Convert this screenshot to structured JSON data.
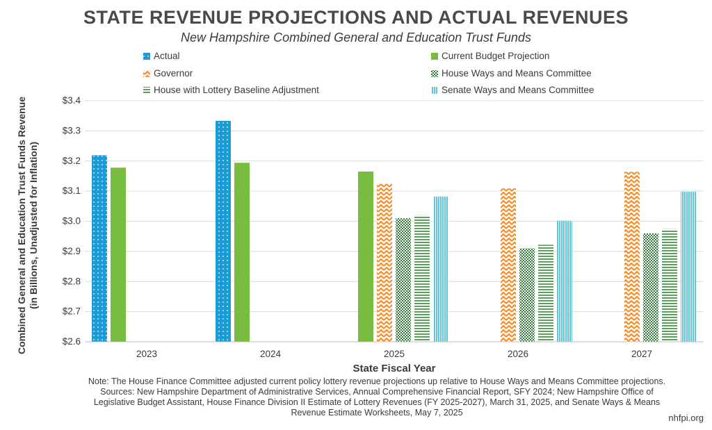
{
  "chart_data": {
    "type": "bar",
    "title": "STATE REVENUE PROJECTIONS AND ACTUAL REVENUES",
    "subtitle": "New Hampshire Combined General and Education Trust Funds",
    "xlabel": "State Fiscal Year",
    "ylabel_line1": "Combined General and Education Trust Funds Revenue",
    "ylabel_line2": "(in Billions, Unadjusted for Inflation)",
    "categories": [
      "2023",
      "2024",
      "2025",
      "2026",
      "2027"
    ],
    "ylim": [
      2.6,
      3.4
    ],
    "y_ticks": [
      {
        "value": 2.6,
        "label": "$2.6"
      },
      {
        "value": 2.7,
        "label": "$2.7"
      },
      {
        "value": 2.8,
        "label": "$2.8"
      },
      {
        "value": 2.9,
        "label": "$2.9"
      },
      {
        "value": 3.0,
        "label": "$3.0"
      },
      {
        "value": 3.1,
        "label": "$3.1"
      },
      {
        "value": 3.2,
        "label": "$3.2"
      },
      {
        "value": 3.3,
        "label": "$3.3"
      },
      {
        "value": 3.4,
        "label": "$3.4"
      }
    ],
    "grid": true,
    "legend_position": "top",
    "series": [
      {
        "name": "Actual",
        "color": "#1a9bd7",
        "pattern": "dots",
        "values": [
          3.219,
          3.333,
          null,
          null,
          null
        ]
      },
      {
        "name": "Current Budget Projection",
        "color": "#77bc3f",
        "pattern": "solid",
        "values": [
          3.178,
          3.194,
          3.165,
          null,
          null
        ]
      },
      {
        "name": "Governor",
        "color": "#f28c28",
        "pattern": "zigzag",
        "values": [
          null,
          null,
          3.124,
          3.109,
          3.164
        ]
      },
      {
        "name": "House Ways and Means Committee",
        "color": "#3a8a3e",
        "pattern": "checker",
        "values": [
          null,
          null,
          3.01,
          2.91,
          2.96
        ]
      },
      {
        "name": "House with Lottery Baseline Adjustment",
        "color": "#5aa05a",
        "pattern": "hstripes",
        "values": [
          null,
          null,
          3.02,
          2.922,
          2.974
        ]
      },
      {
        "name": "Senate Ways and Means Committee",
        "color": "#5cc6d8",
        "pattern": "vstripes",
        "values": [
          null,
          null,
          3.082,
          3.002,
          3.098
        ]
      }
    ]
  },
  "footer": {
    "note_lines": [
      "Note: The House Finance Committee adjusted current policy lottery revenue projections up relative to House Ways and Means Committee projections.",
      "Sources: New Hampshire Department of Administrative Services, Annual Comprehensive Financial Report, SFY 2024; New Hampshire Office of",
      "Legislative Budget Assistant, House Finance Division II Estimate of Lottery Revenues (FY 2025-2027), March 31, 2025, and Senate Ways & Means",
      "Revenue Estimate Worksheets, May 7, 2025"
    ],
    "credit": "nhfpi.org"
  }
}
